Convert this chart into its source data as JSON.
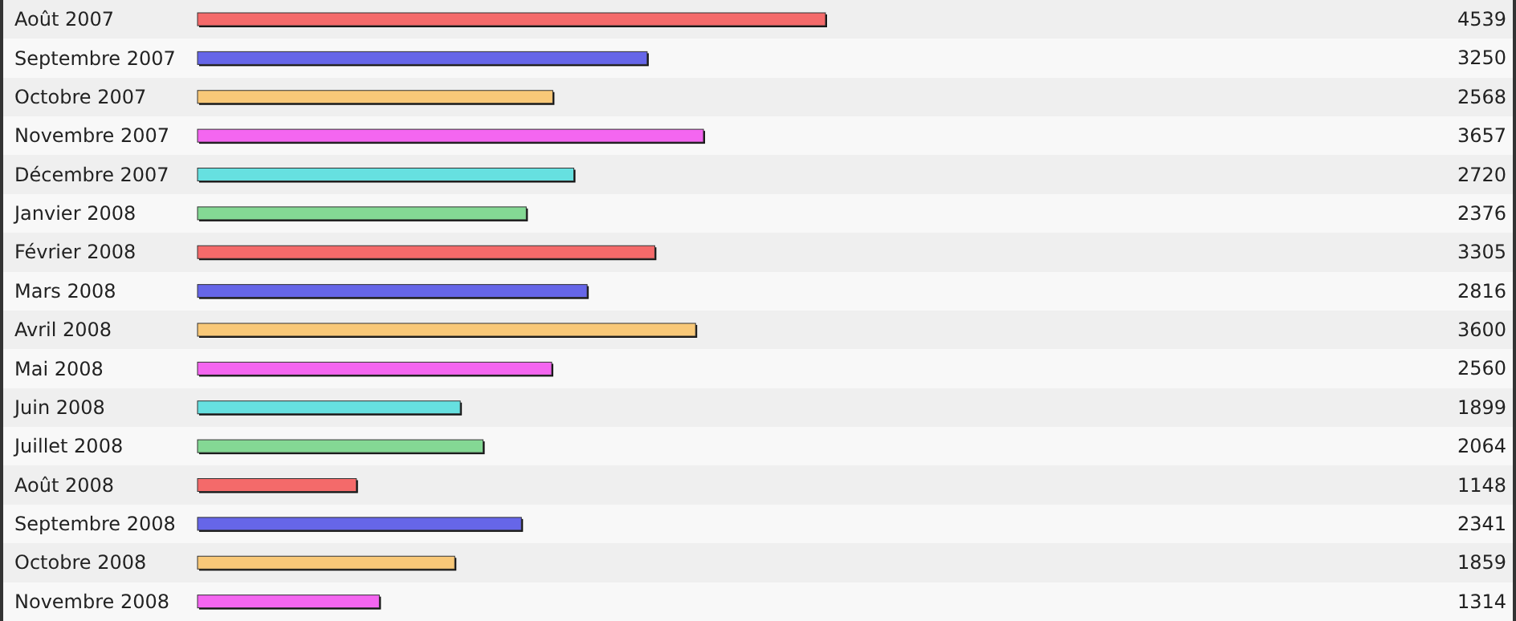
{
  "chart_data": {
    "type": "bar",
    "orientation": "horizontal",
    "data_labels": true,
    "categories": [
      "Août 2007",
      "Septembre 2007",
      "Octobre 2007",
      "Novembre 2007",
      "Décembre 2007",
      "Janvier 2008",
      "Février 2008",
      "Mars 2008",
      "Avril 2008",
      "Mai 2008",
      "Juin 2008",
      "Juillet 2008",
      "Août 2008",
      "Septembre 2008",
      "Octobre 2008",
      "Novembre 2008"
    ],
    "values": [
      4539,
      3250,
      2568,
      3657,
      2720,
      2376,
      3305,
      2816,
      3600,
      2560,
      1899,
      2064,
      1148,
      2341,
      1859,
      1314
    ],
    "colors": [
      "#f46a6a",
      "#6666e8",
      "#f8c878",
      "#f466f0",
      "#66e0e0",
      "#84d894",
      "#f46a6a",
      "#6666e8",
      "#f8c878",
      "#f466f0",
      "#66e0e0",
      "#84d894",
      "#f46a6a",
      "#6666e8",
      "#f8c878",
      "#f466f0"
    ]
  }
}
